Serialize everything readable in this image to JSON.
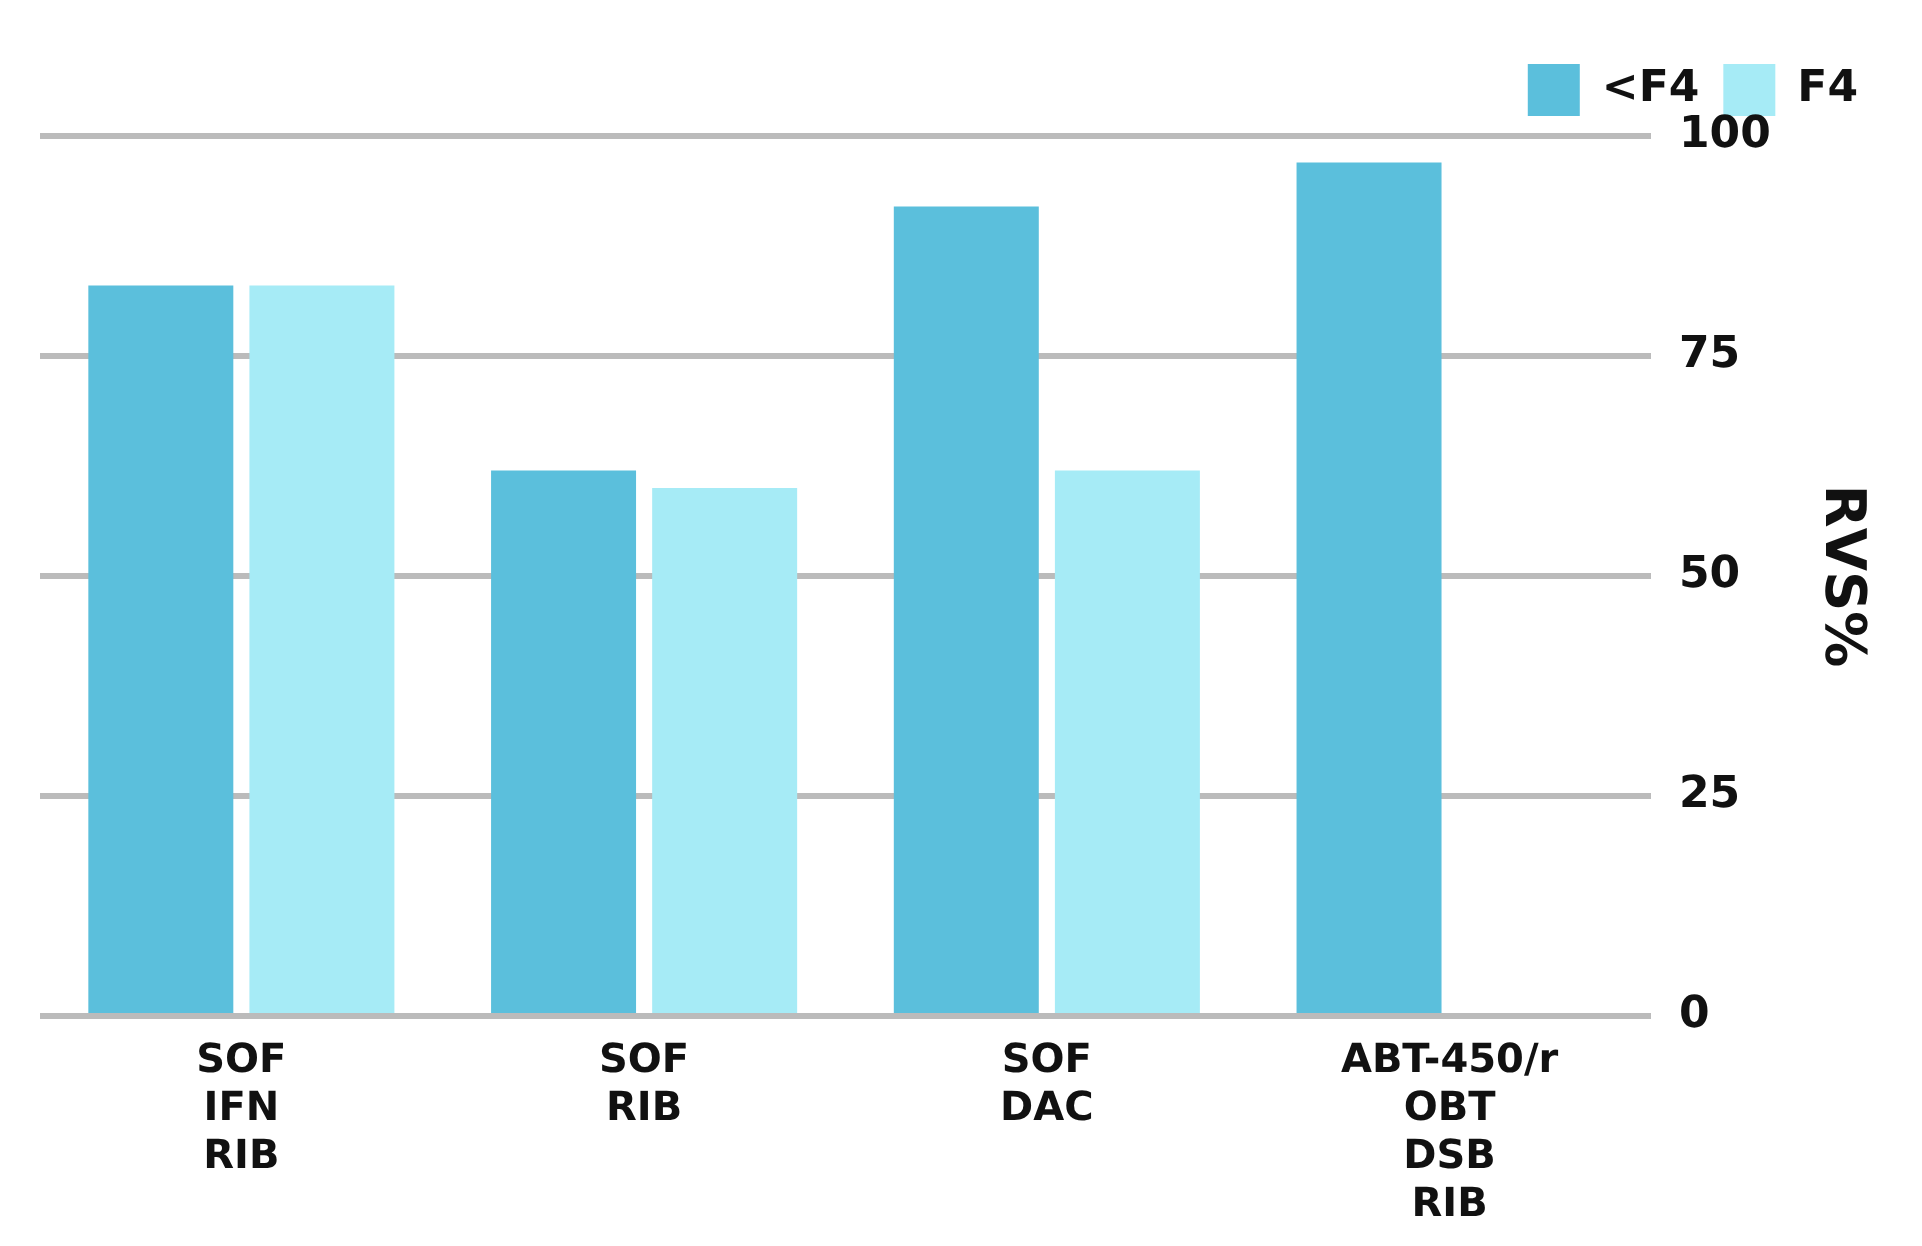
{
  "chart_data": {
    "type": "bar",
    "categories": [
      "SOF\nIFN\nRIB",
      "SOF\nRIB",
      "SOF\nDAC",
      "ABT-450/r\nOBT\nDSB\nRIB"
    ],
    "ylabel": "RVS%",
    "ylim": [
      0,
      100
    ],
    "yticks": [
      0,
      25,
      50,
      75,
      100
    ],
    "grid": "y",
    "legend": "top right",
    "series": [
      {
        "name": "<F4",
        "color": "#5bbfdc",
        "values": [
          83,
          62,
          92,
          97
        ]
      },
      {
        "name": "F4",
        "color": "#a6ebf6",
        "values": [
          83,
          60,
          62,
          null
        ]
      }
    ]
  }
}
